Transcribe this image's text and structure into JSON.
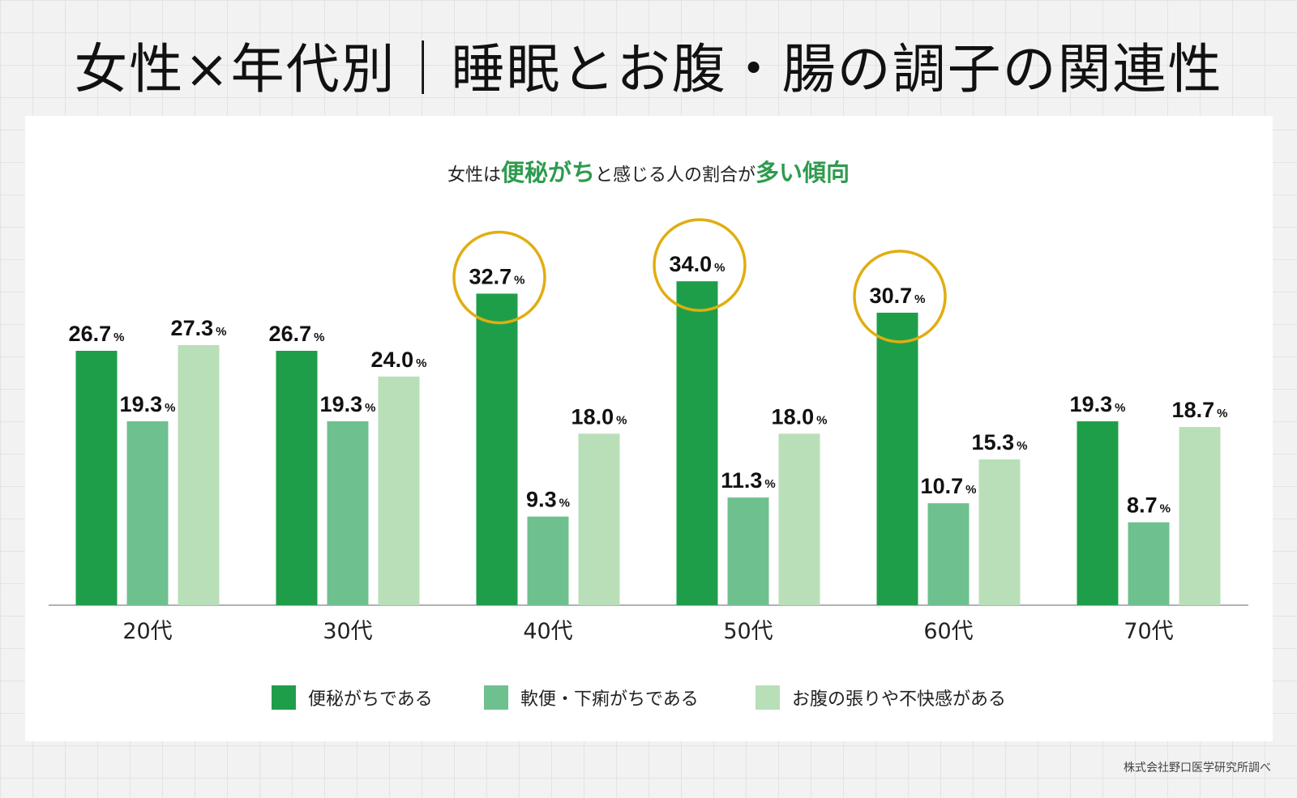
{
  "title": "女性×年代別｜睡眠とお腹・腸の調子の関連性",
  "subtitle": {
    "part1": "女性は",
    "hl1": "便秘がち",
    "part2": "と感じる人の割合が",
    "hl2": "多い傾向"
  },
  "footer": "株式会社野口医学研究所調べ",
  "chart_data": {
    "type": "bar",
    "categories": [
      "20代",
      "30代",
      "40代",
      "50代",
      "60代",
      "70代"
    ],
    "series": [
      {
        "name": "便秘がちである",
        "color": "#1f9e4a",
        "values": [
          26.7,
          26.7,
          32.7,
          34.0,
          30.7,
          19.3
        ]
      },
      {
        "name": "軟便・下痢がちである",
        "color": "#6fc08f",
        "values": [
          19.3,
          19.3,
          9.3,
          11.3,
          10.7,
          8.7
        ]
      },
      {
        "name": "お腹の張りや不快感がある",
        "color": "#b9dfb9",
        "values": [
          27.3,
          24.0,
          18.0,
          18.0,
          15.3,
          18.7
        ]
      }
    ],
    "unit": "%",
    "highlighted": {
      "series": "便秘がちである",
      "categories": [
        "40代",
        "50代",
        "60代"
      ],
      "color": "#e0ae10"
    },
    "ylim": [
      0,
      40
    ],
    "grid": false,
    "legend": "bottom"
  }
}
